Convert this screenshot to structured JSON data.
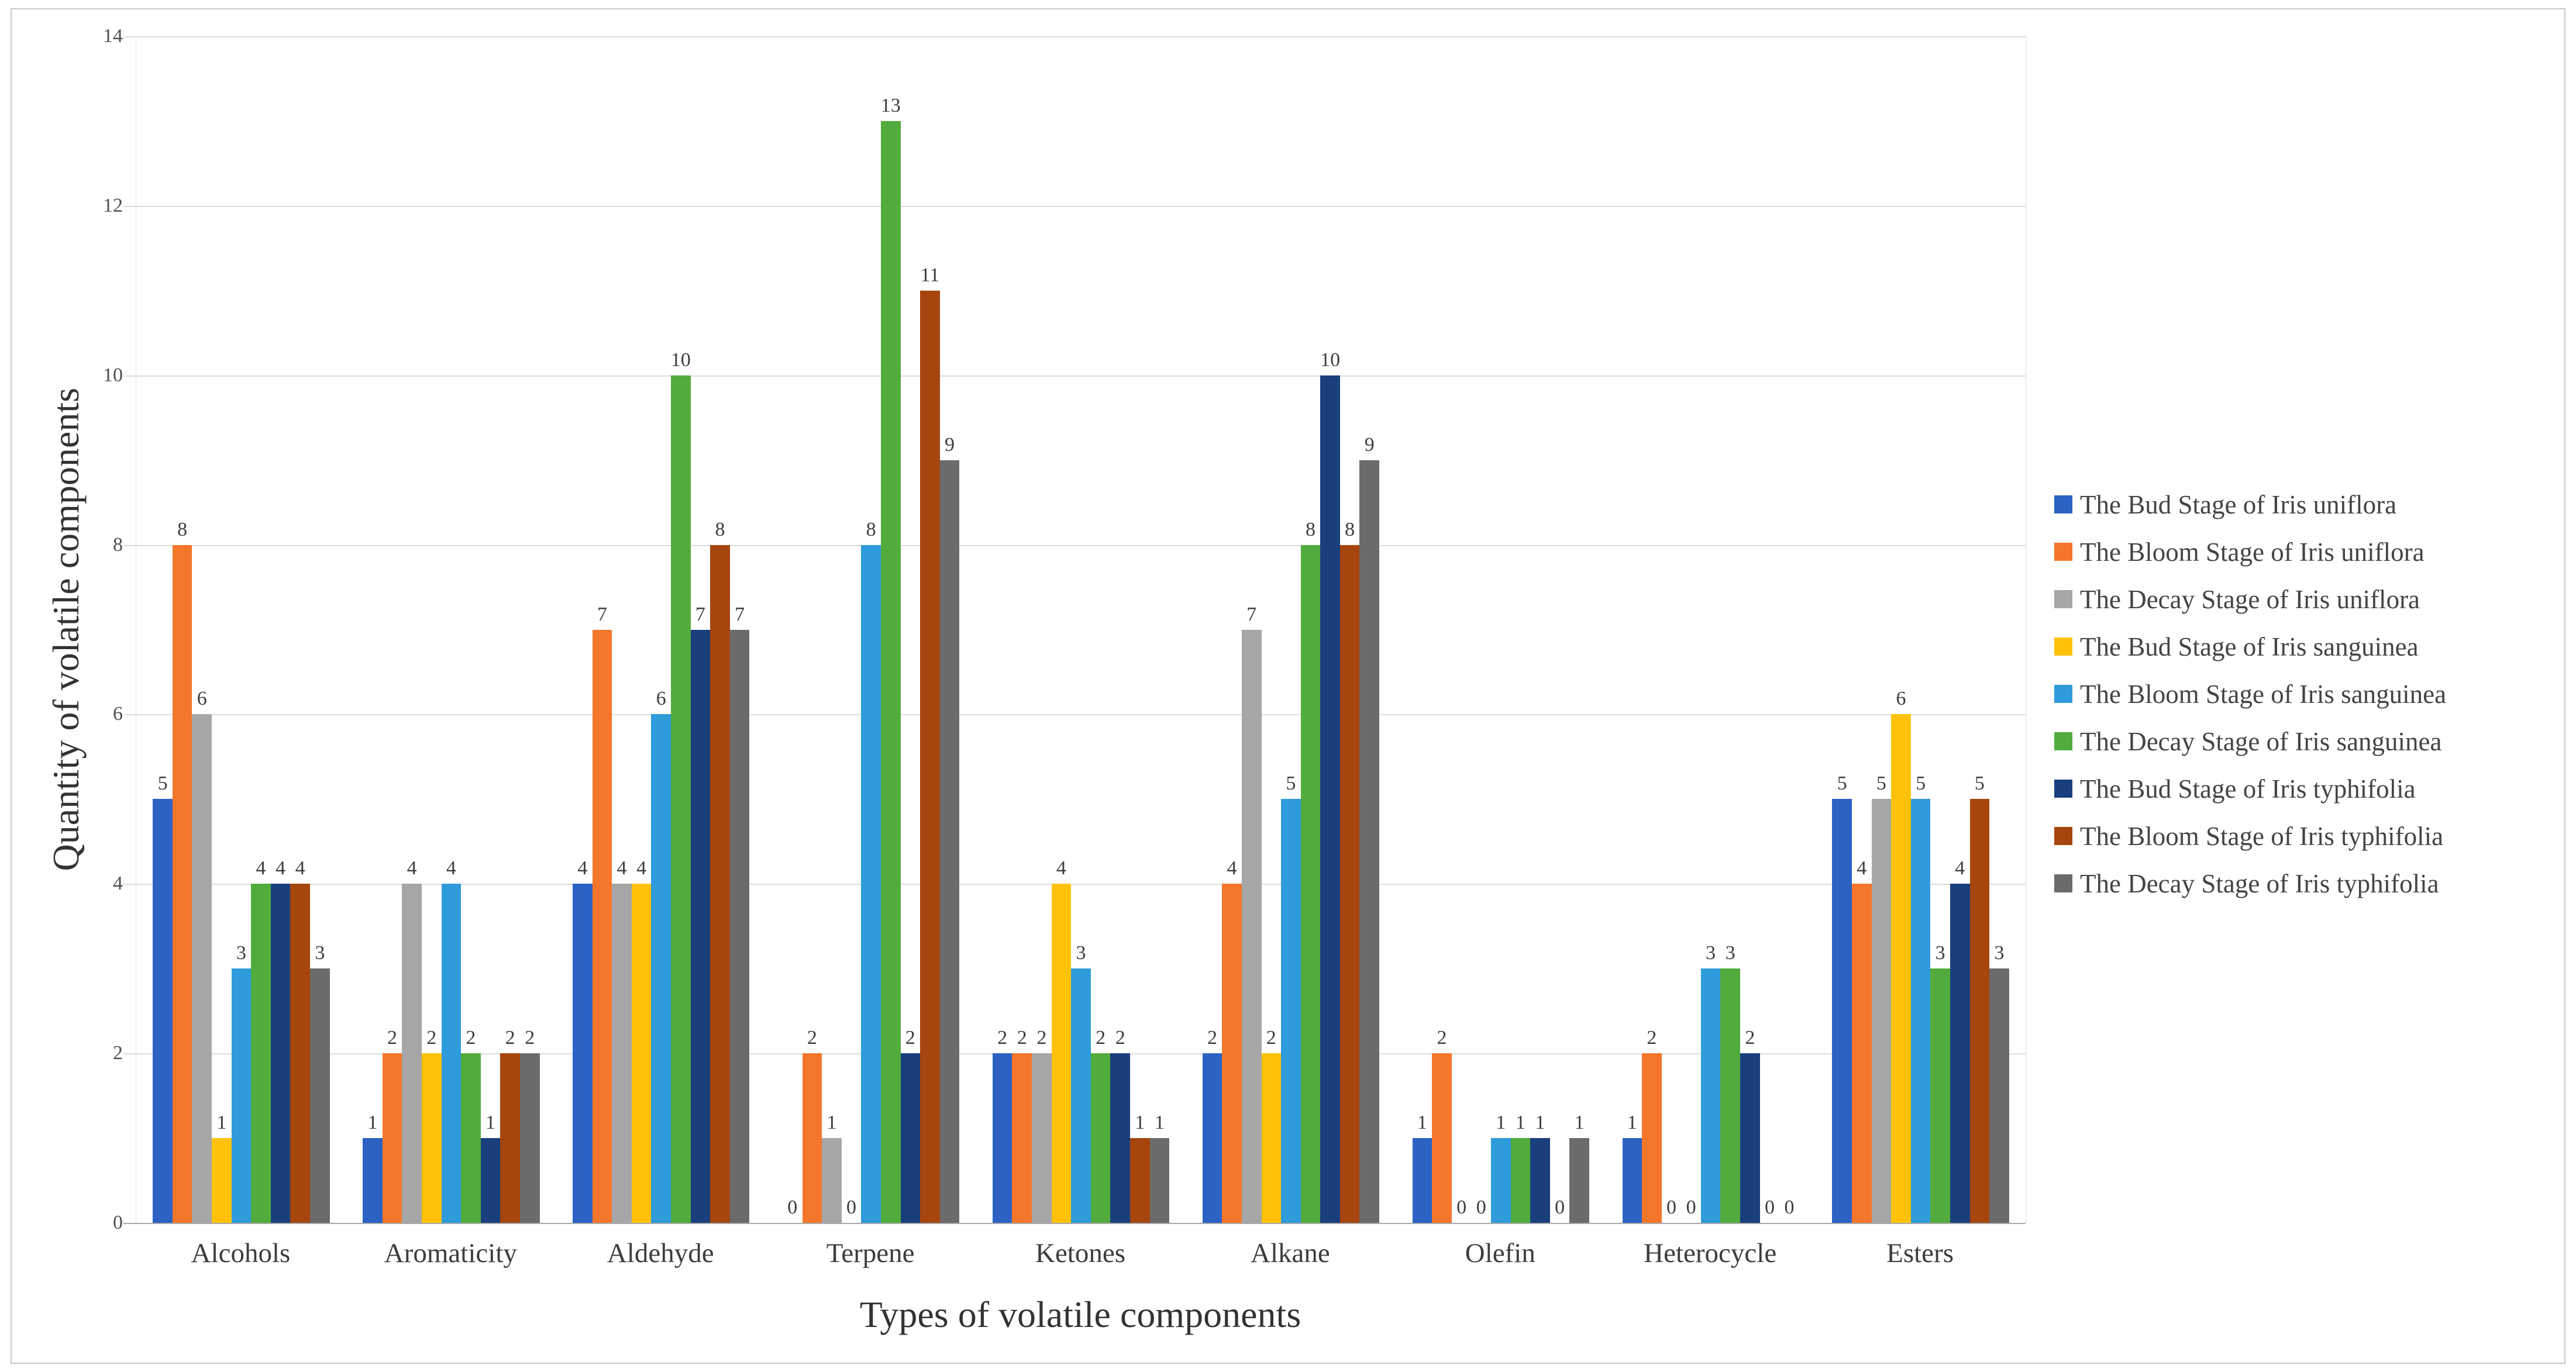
{
  "figure": {
    "x_axis_title": "Types of volatile components",
    "y_axis_title": "Quantity of volatile components"
  },
  "style": {
    "gridline_color": "#dcdcdc",
    "axis_line_color": "#a9a9a9",
    "figure_border_color": "#c9c9c9",
    "label_color": "#3d3d3d"
  },
  "chart_data": {
    "type": "bar",
    "title": "",
    "xlabel": "Types of volatile components",
    "ylabel": "Quantity of volatile components",
    "ylim": [
      0,
      14
    ],
    "yticks": [
      0,
      2,
      4,
      6,
      8,
      10,
      12,
      14
    ],
    "grid": true,
    "data_labels": true,
    "legend_position": "right",
    "categories": [
      "Alcohols",
      "Aromaticity",
      "Aldehyde",
      "Terpene",
      "Ketones",
      "Alkane",
      "Olefin",
      "Heterocycle",
      "Esters"
    ],
    "series": [
      {
        "name": "The Bud Stage of Iris uniflora",
        "color": "#2b62c4",
        "values": [
          5,
          1,
          4,
          0,
          2,
          2,
          1,
          1,
          5
        ]
      },
      {
        "name": "The Bloom Stage of Iris uniflora",
        "color": "#f4762a",
        "values": [
          8,
          2,
          7,
          2,
          2,
          4,
          2,
          2,
          4
        ]
      },
      {
        "name": "The Decay Stage of Iris uniflora",
        "color": "#a6a6a6",
        "values": [
          6,
          4,
          4,
          1,
          2,
          7,
          0,
          0,
          5
        ]
      },
      {
        "name": "The Bud Stage of Iris sanguinea",
        "color": "#ffc208",
        "values": [
          1,
          2,
          4,
          0,
          4,
          2,
          0,
          0,
          6
        ]
      },
      {
        "name": "The Bloom Stage of Iris sanguinea",
        "color": "#2e9bdb",
        "values": [
          3,
          4,
          6,
          8,
          3,
          5,
          1,
          3,
          5
        ]
      },
      {
        "name": "The Decay Stage of Iris sanguinea",
        "color": "#52ac3d",
        "values": [
          4,
          2,
          10,
          13,
          2,
          8,
          1,
          3,
          3
        ]
      },
      {
        "name": "The Bud Stage of Iris typhifolia",
        "color": "#1a3f7d",
        "values": [
          4,
          1,
          7,
          2,
          2,
          10,
          1,
          2,
          4
        ]
      },
      {
        "name": "The Bloom Stage of Iris typhifolia",
        "color": "#a6450d",
        "values": [
          4,
          2,
          8,
          11,
          1,
          8,
          0,
          0,
          5
        ]
      },
      {
        "name": "The Decay Stage of Iris typhifolia",
        "color": "#6b6b6b",
        "values": [
          3,
          2,
          7,
          9,
          1,
          9,
          1,
          0,
          3
        ]
      }
    ]
  }
}
